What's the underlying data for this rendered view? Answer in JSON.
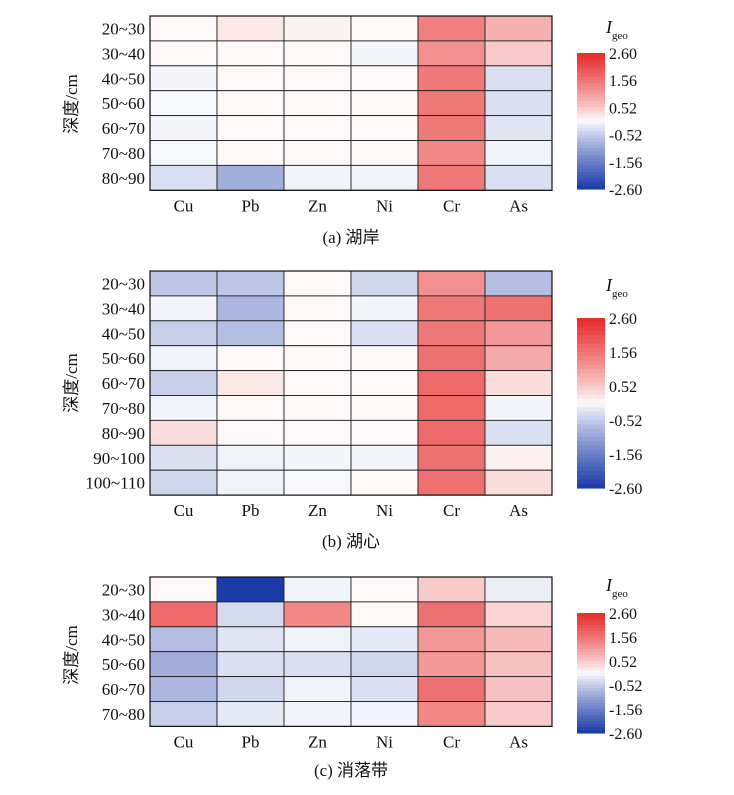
{
  "chart_data": [
    {
      "type": "heatmap",
      "caption": "(a) 湖岸",
      "ylabel": "深度/cm",
      "columns": [
        "Cu",
        "Pb",
        "Zn",
        "Ni",
        "Cr",
        "As"
      ],
      "rows": [
        "20~30",
        "30~40",
        "40~50",
        "50~60",
        "60~70",
        "70~80",
        "80~90"
      ],
      "values": [
        [
          0.05,
          0.2,
          0.1,
          0.05,
          1.4,
          0.8
        ],
        [
          0.05,
          0.05,
          0.05,
          -0.08,
          1.2,
          0.5
        ],
        [
          -0.08,
          0.05,
          0.05,
          0.05,
          1.5,
          -0.3
        ],
        [
          -0.05,
          0.05,
          0.05,
          0.05,
          1.5,
          -0.3
        ],
        [
          -0.08,
          0.05,
          0.05,
          0.05,
          1.5,
          -0.25
        ],
        [
          -0.05,
          0.05,
          0.05,
          0.05,
          1.3,
          -0.1
        ],
        [
          -0.3,
          -0.9,
          -0.1,
          -0.1,
          1.5,
          -0.3
        ]
      ],
      "colorbar": {
        "title_main": "I",
        "title_sub": "geo",
        "ticks": [
          "2.60",
          "1.56",
          "0.52",
          "-0.52",
          "-1.56",
          "-2.60"
        ],
        "min": -2.6,
        "max": 2.6
      }
    },
    {
      "type": "heatmap",
      "caption": "(b) 湖心",
      "ylabel": "深度/cm",
      "columns": [
        "Cu",
        "Pb",
        "Zn",
        "Ni",
        "Cr",
        "As"
      ],
      "rows": [
        "20~30",
        "30~40",
        "40~50",
        "50~60",
        "60~70",
        "70~80",
        "80~90",
        "90~100",
        "100~110"
      ],
      "values": [
        [
          -0.6,
          -0.6,
          0.05,
          -0.4,
          1.2,
          -0.7
        ],
        [
          -0.08,
          -0.8,
          0.05,
          -0.08,
          1.5,
          1.6
        ],
        [
          -0.5,
          -0.7,
          0.05,
          -0.3,
          1.5,
          1.1
        ],
        [
          -0.1,
          0.05,
          0.05,
          0.05,
          1.6,
          0.9
        ],
        [
          -0.5,
          0.2,
          0.05,
          0.05,
          1.7,
          0.3
        ],
        [
          -0.1,
          0.05,
          0.05,
          0.05,
          1.7,
          -0.08
        ],
        [
          0.3,
          0.05,
          0.05,
          0.05,
          1.7,
          -0.3
        ],
        [
          -0.3,
          -0.1,
          -0.08,
          -0.08,
          1.6,
          0.1
        ],
        [
          -0.4,
          -0.1,
          -0.05,
          0.05,
          1.6,
          0.3
        ]
      ],
      "colorbar": {
        "title_main": "I",
        "title_sub": "geo",
        "ticks": [
          "2.60",
          "1.56",
          "0.52",
          "-0.52",
          "-1.56",
          "-2.60"
        ],
        "min": -2.6,
        "max": 2.6
      }
    },
    {
      "type": "heatmap",
      "caption": "(c) 消落带",
      "ylabel": "深度/cm",
      "columns": [
        "Cu",
        "Pb",
        "Zn",
        "Ni",
        "Cr",
        "As"
      ],
      "rows": [
        "20~30",
        "30~40",
        "40~50",
        "50~60",
        "60~70",
        "70~80"
      ],
      "values": [
        [
          0.05,
          -2.6,
          -0.1,
          0.05,
          0.5,
          -0.15
        ],
        [
          1.7,
          -0.35,
          1.3,
          0.05,
          1.6,
          0.4
        ],
        [
          -0.7,
          -0.25,
          -0.1,
          -0.2,
          1.1,
          0.7
        ],
        [
          -0.9,
          -0.3,
          -0.3,
          -0.4,
          1.1,
          0.6
        ],
        [
          -0.8,
          -0.4,
          -0.1,
          -0.3,
          1.6,
          0.6
        ],
        [
          -0.5,
          -0.2,
          -0.1,
          -0.08,
          1.3,
          0.5
        ]
      ],
      "colorbar": {
        "title_main": "I",
        "title_sub": "geo",
        "ticks": [
          "2.60",
          "1.56",
          "0.52",
          "-0.52",
          "-1.56",
          "-2.60"
        ],
        "min": -2.6,
        "max": 2.6
      }
    }
  ]
}
